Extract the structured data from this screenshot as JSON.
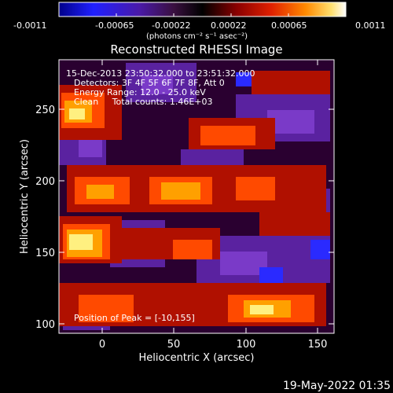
{
  "colorbar": {
    "tick_labels": [
      "-0.0011",
      "-0.00065",
      "-0.00022",
      "0.00022",
      "0.00065",
      "0.0011"
    ],
    "unit_label": "(photons cm⁻² s⁻¹ asec⁻²)"
  },
  "image": {
    "title": "Reconstructed RHESSI Image",
    "info_lines": [
      "15-Dec-2013 23:50:32.000 to 23:51:32.000",
      "Detectors: 3F 4F 5F 6F 7F 8F, Att 0",
      "Energy Range: 12.0 - 25.0 keV",
      "Clean     Total counts: 1.46E+03"
    ],
    "peak_text": "Position of Peak = [-10,155]",
    "timestamp": "19-May-2022 01:35"
  },
  "axes": {
    "xlabel": "Heliocentric X (arcsec)",
    "ylabel": "Heliocentric Y (arcsec)",
    "x_ticks": [
      "0",
      "50",
      "100",
      "150"
    ],
    "y_ticks": [
      "100",
      "150",
      "200",
      "250"
    ],
    "xlim": [
      -33,
      160
    ],
    "ylim": [
      96,
      275
    ]
  },
  "colors": {
    "colormap": [
      "#000080",
      "#1a1aff",
      "#4a1aa0",
      "#5a1a5a",
      "#1a0000",
      "#7a0000",
      "#c81000",
      "#ff5000",
      "#ffb000",
      "#ffff90",
      "#ffffff"
    ],
    "frame": "#ffffff"
  }
}
